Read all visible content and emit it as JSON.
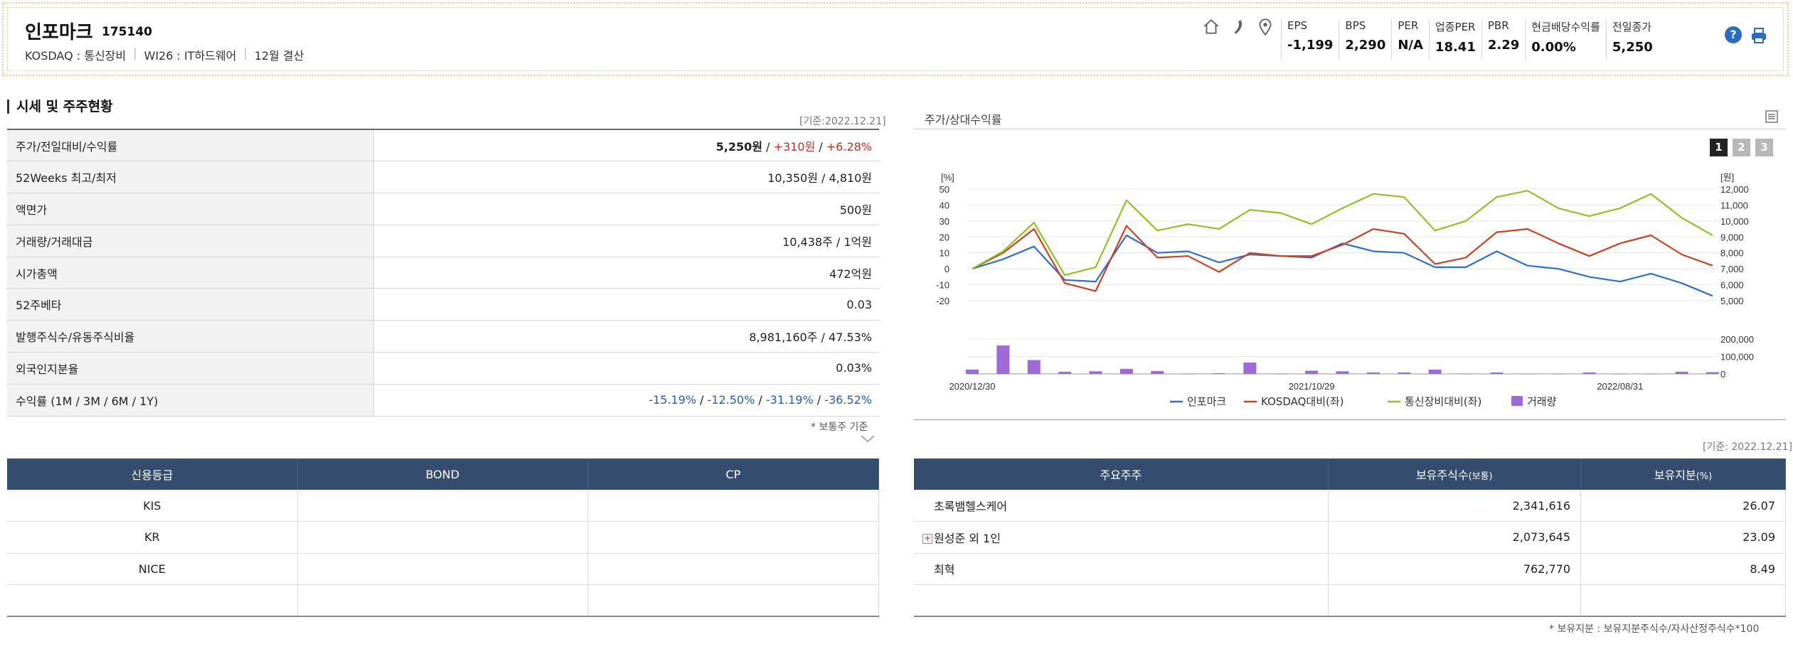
{
  "header": {
    "company_name": "인포마크",
    "company_code": "175140",
    "market": "KOSDAQ : 통신장비",
    "sector": "WI26 : IT하드웨어",
    "fiscal": "12월 결산",
    "metrics": [
      {
        "label": "EPS",
        "value": "-1,199"
      },
      {
        "label": "BPS",
        "value": "2,290"
      },
      {
        "label": "PER",
        "value": "N/A"
      },
      {
        "label": "업종PER",
        "value": "18.41"
      },
      {
        "label": "PBR",
        "value": "2.29"
      },
      {
        "label": "현금배당수익률",
        "value": "0.00%"
      },
      {
        "label": "전일종가",
        "value": "5,250"
      }
    ],
    "help_glyph": "?",
    "icons": [
      "home-icon",
      "phone-icon",
      "location-pin-icon",
      "help-icon",
      "print-icon"
    ]
  },
  "quote_section": {
    "title": "시세 및 주주현황",
    "as_of": "[기준:2022.12.21]",
    "rows": [
      {
        "label": "주가/전일대비/수익률",
        "price": "5,250원",
        "sep1": " / ",
        "change": "+310원",
        "sep2": " / ",
        "rate": "+6.28%"
      },
      {
        "label": "52Weeks 최고/최저",
        "value": "10,350원 / 4,810원"
      },
      {
        "label": "액면가",
        "value": "500원"
      },
      {
        "label": "거래량/거래대금",
        "value": "10,438주 / 1억원"
      },
      {
        "label": "시가총액",
        "value": "472억원"
      },
      {
        "label": "52주베타",
        "value": "0.03"
      },
      {
        "label": "발행주식수/유동주식비율",
        "value": "8,981,160주 / 47.53%"
      },
      {
        "label": "외국인지분율",
        "value": "0.03%"
      },
      {
        "label": "수익률 (1M / 3M / 6M / 1Y)",
        "r1": "-15.19%",
        "r2": "-12.50%",
        "r3": "-31.19%",
        "r4": "-36.52%",
        "sep": " / "
      }
    ],
    "note": "* 보통주 기준"
  },
  "credit_table": {
    "headers": [
      "신용등급",
      "BOND",
      "CP"
    ],
    "rows": [
      [
        "KIS",
        "",
        ""
      ],
      [
        "KR",
        "",
        ""
      ],
      [
        "NICE",
        "",
        ""
      ],
      [
        "",
        "",
        ""
      ]
    ]
  },
  "chart_section": {
    "title": "주가/상대수익률",
    "pages": [
      "1",
      "2",
      "3"
    ],
    "active_page": "1"
  },
  "chart_data": {
    "type": "line",
    "left_axis_unit": "[%]",
    "right_axis_unit": "[원]",
    "left_ticks": [
      "50",
      "40",
      "30",
      "20",
      "10",
      "0",
      "-10",
      "-20"
    ],
    "right_ticks": [
      "12,000",
      "11,000",
      "10,000",
      "9,000",
      "8,000",
      "7,000",
      "6,000",
      "5,000"
    ],
    "volume_ticks": [
      "200,000",
      "100,000",
      "0"
    ],
    "x_labels": [
      "2020/12/30",
      "2021/10/29",
      "2022/08/31"
    ],
    "ylim_left": [
      -20,
      50
    ],
    "ylim_volume": [
      0,
      200000
    ],
    "series": [
      {
        "name": "인포마크",
        "color": "#2d6fd6",
        "values": [
          0,
          6,
          14,
          -7,
          -8,
          21,
          10,
          11,
          4,
          9,
          8,
          7,
          16,
          11,
          10,
          1,
          1,
          11,
          2,
          0,
          -5,
          -8,
          -3,
          -9,
          -17
        ]
      },
      {
        "name": "KOSDAQ대비(좌)",
        "color": "#d2401f",
        "values": [
          0,
          10,
          25,
          -9,
          -14,
          27,
          7,
          8,
          -2,
          10,
          8,
          8,
          15,
          25,
          22,
          3,
          7,
          23,
          25,
          16,
          8,
          16,
          21,
          9,
          2
        ]
      },
      {
        "name": "통신장비대비(좌)",
        "color": "#8fc31f",
        "values": [
          0,
          11,
          29,
          -4,
          1,
          43,
          24,
          28,
          25,
          37,
          35,
          28,
          38,
          47,
          45,
          24,
          30,
          45,
          49,
          38,
          33,
          38,
          47,
          32,
          21
        ]
      }
    ],
    "volume": {
      "name": "거래량",
      "color": "#9d6ad8",
      "values": [
        30000,
        195000,
        95000,
        15000,
        18000,
        35000,
        20000,
        3000,
        5000,
        78000,
        3000,
        22000,
        18000,
        10000,
        10000,
        30000,
        3000,
        10000,
        3000,
        3000,
        10000,
        3000,
        3000,
        15000,
        12000
      ]
    }
  },
  "holders_section": {
    "as_of": "[기준: 2022.12.21]",
    "headers": [
      "주요주주",
      "보유주식수",
      "(보통)",
      "보유지분",
      "(%)"
    ],
    "rows": [
      {
        "name": "초록뱀헬스케어",
        "shares": "2,341,616",
        "pct": "26.07",
        "expandable": false
      },
      {
        "name": "원성준 외 1인",
        "shares": "2,073,645",
        "pct": "23.09",
        "expandable": true
      },
      {
        "name": "최혁",
        "shares": "762,770",
        "pct": "8.49",
        "expandable": false
      },
      {
        "name": "",
        "shares": "",
        "pct": "",
        "expandable": false
      }
    ],
    "expand_glyph": "+",
    "note": "* 보유지분 : 보유지분주식수/자사산정주식수*100"
  }
}
